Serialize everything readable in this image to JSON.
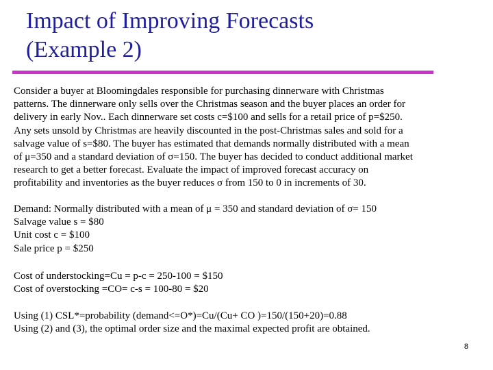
{
  "title": {
    "line1": "Impact of Improving Forecasts",
    "line2": "(Example 2)"
  },
  "colors": {
    "title": "#1f1f99",
    "rule": "#cc33cc"
  },
  "intro_lines": [
    "Consider a buyer at Bloomingdales responsible for purchasing dinnerware with Christmas",
    "patterns. The dinnerware only sells over the Christmas season and the buyer places an order for",
    "delivery in early Nov.. Each dinnerware set costs c=$100 and sells for a retail price of p=$250.",
    "Any sets unsold by Christmas are heavily discounted in the post-Christmas sales and sold for a",
    "salvage value of s=$80. The buyer has estimated that demands normally distributed with a mean",
    "of μ=350 and a standard deviation of σ=150. The buyer has decided to conduct additional market",
    "research to get a better forecast. Evaluate the impact of improved forecast accuracy on",
    "profitability and inventories as the buyer reduces σ from 150 to 0 in increments of 30."
  ],
  "params_lines": [
    "Demand: Normally distributed with a mean of μ = 350 and standard deviation of σ= 150",
    "Salvage value s = $80",
    "Unit cost  c = $100",
    "Sale price  p = $250"
  ],
  "cost_lines": [
    "Cost of understocking=Cu = p-c = 250-100 = $150",
    "Cost of overstocking =CO= c-s = 100-80 = $20"
  ],
  "using_lines": [
    "Using (1)        CSL*=probability (demand<=O*)=Cu/(Cu+ CO )=150/(150+20)=0.88",
    "Using (2) and (3), the optimal order size and the maximal expected profit are obtained."
  ],
  "page_number": "8"
}
